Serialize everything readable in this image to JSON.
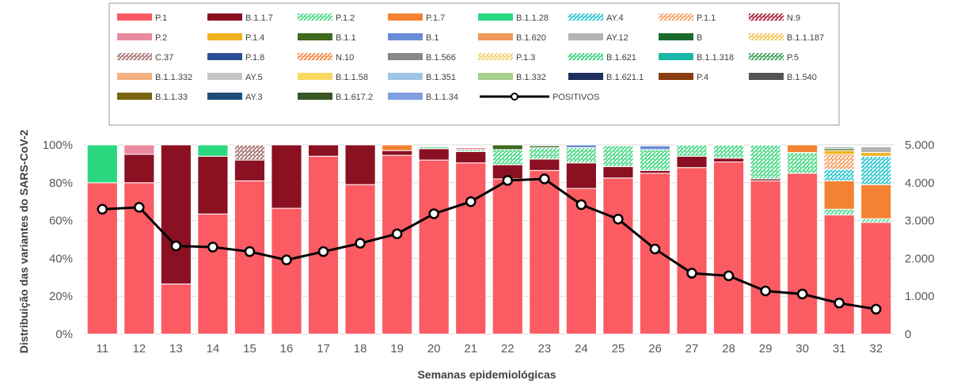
{
  "chart_data": {
    "type": "bar",
    "stacked": true,
    "xlabel": "Semanas epidemiológicas",
    "ylabel": "Distribuição das variantes do SARS-CoV-2",
    "ylim": [
      0,
      100
    ],
    "y2lim": [
      0,
      5000
    ],
    "yticks": [
      "0%",
      "20%",
      "40%",
      "60%",
      "80%",
      "100%"
    ],
    "y2ticks": [
      "0",
      "1.000",
      "2.000",
      "3.000",
      "4.000",
      "5.000"
    ],
    "legend_position": "top",
    "categories": [
      "11",
      "12",
      "13",
      "14",
      "15",
      "16",
      "17",
      "18",
      "19",
      "20",
      "21",
      "22",
      "23",
      "24",
      "25",
      "26",
      "27",
      "28",
      "29",
      "30",
      "31",
      "32"
    ],
    "series": [
      {
        "name": "P.1",
        "color": "#fb5b63",
        "values": [
          80,
          80,
          26.5,
          63.5,
          81,
          66.5,
          94,
          79,
          94.5,
          92,
          90.5,
          82,
          86.5,
          77,
          82.5,
          85,
          88,
          91,
          81,
          85,
          63,
          59
        ]
      },
      {
        "name": "B.1.1.7",
        "color": "#8b1022",
        "values": [
          0,
          15,
          73.5,
          30.5,
          11,
          33.5,
          6,
          21,
          2.5,
          6,
          6,
          7.5,
          6,
          13.5,
          6,
          1.5,
          6,
          2,
          1,
          0,
          0,
          0
        ]
      },
      {
        "name": "P.1.2",
        "color": "#3fd67f",
        "pattern": true,
        "values": [
          0,
          0,
          0,
          0,
          0,
          0,
          0,
          0,
          0,
          1,
          1,
          8,
          6,
          8,
          11,
          11,
          6,
          7,
          18,
          11,
          3,
          2
        ]
      },
      {
        "name": "P.1.7",
        "color": "#f58232",
        "values": [
          0,
          0,
          0,
          0,
          0,
          0,
          0,
          0,
          3,
          0,
          0,
          0,
          0,
          0,
          0,
          0,
          0,
          0,
          0,
          4,
          15,
          18
        ]
      },
      {
        "name": "B.1.1.28",
        "color": "#2ad880",
        "values": [
          20,
          0,
          0,
          6,
          0,
          0,
          0,
          0,
          0,
          0,
          0,
          0,
          0,
          0,
          0,
          0,
          0,
          0,
          0,
          0,
          0,
          0
        ]
      },
      {
        "name": "AY.4",
        "color": "#24c2cc",
        "pattern": true,
        "values": [
          0,
          0,
          0,
          0,
          0,
          0,
          0,
          0,
          0,
          0,
          0,
          0,
          0,
          0,
          0,
          0,
          0,
          0,
          0,
          0,
          6,
          15
        ]
      },
      {
        "name": "P.1.1",
        "color": "#f59a5a",
        "pattern": true,
        "values": [
          0,
          0,
          0,
          0,
          0,
          0,
          0,
          0,
          0,
          0,
          0,
          0,
          0,
          0,
          0,
          0,
          0,
          0,
          0,
          0,
          8,
          0
        ]
      },
      {
        "name": "N.9",
        "color": "#a3102a",
        "pattern": true,
        "values": [
          0,
          0,
          0,
          0,
          0,
          0,
          0,
          0,
          0,
          0,
          0,
          0,
          0,
          0,
          0,
          0,
          0,
          0,
          0,
          0,
          0,
          0
        ]
      },
      {
        "name": "P.2",
        "color": "#ea8aa1",
        "values": [
          0,
          5,
          0,
          0,
          0,
          0,
          0,
          0,
          0,
          0,
          1,
          0,
          0,
          0,
          0,
          0,
          0,
          0,
          0,
          0,
          0,
          0
        ]
      },
      {
        "name": "P.1.4",
        "color": "#f0b21e",
        "values": [
          0,
          0,
          0,
          0,
          0,
          0,
          0,
          0,
          0,
          0,
          0,
          0,
          0,
          0,
          0,
          0,
          0,
          0,
          0,
          0,
          2,
          2
        ]
      },
      {
        "name": "B.1.1",
        "color": "#3e6b1f",
        "values": [
          0,
          0,
          0,
          0,
          0,
          0,
          0,
          0,
          0,
          0,
          0,
          2.5,
          1,
          0,
          0,
          0,
          0,
          0,
          0,
          0,
          1,
          0
        ]
      },
      {
        "name": "B.1",
        "color": "#6a8dd7",
        "values": [
          0,
          0,
          0,
          0,
          0,
          0,
          0,
          0,
          0,
          0,
          0,
          0,
          0,
          1.5,
          0,
          2,
          0,
          0,
          0,
          0,
          0,
          0
        ]
      },
      {
        "name": "B.1.620",
        "color": "#f0995c",
        "values": [
          0,
          0,
          0,
          0,
          0,
          0,
          0,
          0,
          0,
          0,
          0,
          0,
          0,
          0,
          0,
          0,
          0,
          0,
          0,
          0,
          0,
          0
        ]
      },
      {
        "name": "AY.12",
        "color": "#b3b3b3",
        "values": [
          0,
          0,
          0,
          0,
          0,
          0,
          0,
          0,
          0,
          0,
          0,
          0,
          0,
          0,
          0,
          0,
          0,
          0,
          0,
          0,
          1,
          3
        ]
      },
      {
        "name": "B",
        "color": "#1a6a2e",
        "values": [
          0,
          0,
          0,
          0,
          0,
          0,
          0,
          0,
          0,
          0,
          0,
          0,
          0,
          0,
          0,
          0,
          0,
          0,
          0,
          0,
          0,
          0
        ]
      },
      {
        "name": "B.1.1.187",
        "color": "#f5c24d",
        "pattern": true,
        "values": [
          0,
          0,
          0,
          0,
          0,
          0,
          0,
          0,
          0,
          0,
          0,
          0,
          0,
          0,
          0,
          0,
          0,
          0,
          0,
          0,
          0,
          0
        ]
      },
      {
        "name": "C.37",
        "color": "#a36a6a",
        "pattern": true,
        "values": [
          0,
          0,
          0,
          0,
          8,
          0,
          0,
          0,
          0,
          0,
          0,
          0,
          0,
          0,
          0,
          0,
          0,
          0,
          0,
          0,
          0,
          0
        ]
      },
      {
        "name": "P.1.8",
        "color": "#2c4e97",
        "values": [
          0,
          0,
          0,
          0,
          0,
          0,
          0,
          0,
          0,
          0,
          0,
          0,
          0,
          0,
          0,
          0,
          0,
          0,
          0,
          0,
          0,
          0
        ]
      },
      {
        "name": "N.10",
        "color": "#f47f36",
        "pattern": true,
        "values": [
          0,
          0,
          0,
          0,
          0,
          0,
          0,
          0,
          0,
          0,
          0,
          0,
          0,
          0,
          0,
          0,
          0,
          0,
          0,
          0,
          0,
          0
        ]
      },
      {
        "name": "B.1.566",
        "color": "#888888",
        "values": [
          0,
          0,
          0,
          0,
          0,
          0,
          0,
          0,
          0,
          0,
          0,
          0,
          0,
          0,
          0,
          0,
          0,
          0,
          0,
          0,
          0,
          0
        ]
      },
      {
        "name": "P.1.3",
        "color": "#f5d060",
        "pattern": true,
        "values": [
          0,
          0,
          0,
          0,
          0,
          0,
          0,
          0,
          0,
          0,
          0,
          0,
          0,
          0,
          0,
          0,
          0,
          0,
          0,
          0,
          0,
          0
        ]
      },
      {
        "name": "B.1.621",
        "color": "#30d07a",
        "pattern": true,
        "values": [
          0,
          0,
          0,
          0,
          0,
          0,
          0,
          0,
          0,
          0,
          0,
          0,
          0,
          0,
          0,
          0,
          0,
          0,
          0,
          0,
          0,
          0
        ]
      },
      {
        "name": "B.1.1.318",
        "color": "#18b8a8",
        "values": [
          0,
          0,
          0,
          0,
          0,
          0,
          0,
          0,
          0,
          0,
          0,
          0,
          0,
          0,
          0,
          0,
          0,
          0,
          0,
          0,
          0,
          0
        ]
      },
      {
        "name": "P.5",
        "color": "#2e9a4a",
        "pattern": true,
        "values": [
          0,
          0,
          0,
          0,
          0,
          0,
          0,
          0,
          0,
          0,
          0,
          0,
          0,
          0,
          0,
          0,
          0,
          0,
          0,
          0,
          0,
          0
        ]
      },
      {
        "name": "B.1.1.332",
        "color": "#f5b080",
        "values": [
          0,
          0,
          0,
          0,
          0,
          0,
          0,
          0,
          0,
          0,
          0,
          0,
          0,
          0,
          0,
          0,
          0,
          0,
          0,
          0,
          0,
          0
        ]
      },
      {
        "name": "AY.5",
        "color": "#c4c4c4",
        "values": [
          0,
          0,
          0,
          0,
          0,
          0,
          0,
          0,
          0,
          0,
          0,
          0,
          0,
          0,
          0,
          0,
          0,
          0,
          0,
          0,
          0,
          0
        ]
      },
      {
        "name": "B.1.1.58",
        "color": "#f8d860",
        "values": [
          0,
          0,
          0,
          0,
          0,
          0,
          0,
          0,
          0,
          0,
          0,
          0,
          0,
          0,
          0,
          0,
          0,
          0,
          0,
          0,
          0,
          0
        ]
      },
      {
        "name": "B.1.351",
        "color": "#9ec4e8",
        "values": [
          0,
          0,
          0,
          0,
          0,
          0,
          0,
          0,
          0,
          0,
          0,
          0,
          0,
          0,
          0,
          0,
          0,
          0,
          0,
          0,
          0,
          0
        ]
      },
      {
        "name": "B.1.332",
        "color": "#a4d08a",
        "values": [
          0,
          0,
          0,
          0,
          0,
          0,
          0,
          0,
          0,
          0,
          0,
          0,
          0,
          0,
          0,
          0,
          0,
          0,
          0,
          0,
          0,
          0
        ]
      },
      {
        "name": "B.1.621.1",
        "color": "#1d2f5e",
        "values": [
          0,
          0,
          0,
          0,
          0,
          0,
          0,
          0,
          0,
          0,
          0,
          0,
          0,
          0,
          0,
          0,
          0,
          0,
          0,
          0,
          0,
          0
        ]
      },
      {
        "name": "P.4",
        "color": "#8b3e12",
        "values": [
          0,
          0,
          0,
          0,
          0,
          0,
          0,
          0,
          0,
          0,
          0,
          0,
          0,
          0,
          0,
          0,
          0,
          0,
          0,
          0,
          0,
          0
        ]
      },
      {
        "name": "B.1.540",
        "color": "#545454",
        "values": [
          0,
          0,
          0,
          0,
          0,
          0,
          0,
          0,
          0,
          0,
          0,
          0,
          0,
          0,
          0,
          0,
          0,
          0,
          0,
          0,
          0,
          0
        ]
      },
      {
        "name": "B.1.1.33",
        "color": "#7a6310",
        "values": [
          0,
          0,
          0,
          0,
          0,
          0,
          0,
          0,
          0,
          0,
          0,
          0,
          0,
          0,
          0,
          0,
          0,
          0,
          0,
          0,
          0,
          0
        ]
      },
      {
        "name": "AY.3",
        "color": "#1f4e79",
        "values": [
          0,
          0,
          0,
          0,
          0,
          0,
          0,
          0,
          0,
          0,
          0,
          0,
          0,
          0,
          0,
          0,
          0,
          0,
          0,
          0,
          0,
          0
        ]
      },
      {
        "name": "B.1.617.2",
        "color": "#375623",
        "values": [
          0,
          0,
          0,
          0,
          0,
          0,
          0,
          0,
          0,
          0,
          0,
          0,
          0,
          0,
          0,
          0,
          0,
          0,
          0,
          0,
          0,
          0
        ]
      },
      {
        "name": "B.1.1.34",
        "color": "#7f9fe0",
        "values": [
          0,
          0,
          0,
          0,
          0,
          0,
          0,
          0,
          0,
          0,
          0,
          0,
          0,
          0,
          0,
          0,
          0,
          0,
          0,
          0,
          0,
          0
        ]
      }
    ],
    "line": {
      "name": "POSITIVOS",
      "axis": "right",
      "color": "#000000",
      "values": [
        3300,
        3350,
        2330,
        2300,
        2180,
        1960,
        2180,
        2400,
        2650,
        3180,
        3500,
        4060,
        4100,
        3420,
        3040,
        2250,
        1610,
        1540,
        1140,
        1060,
        820,
        660
      ]
    }
  }
}
